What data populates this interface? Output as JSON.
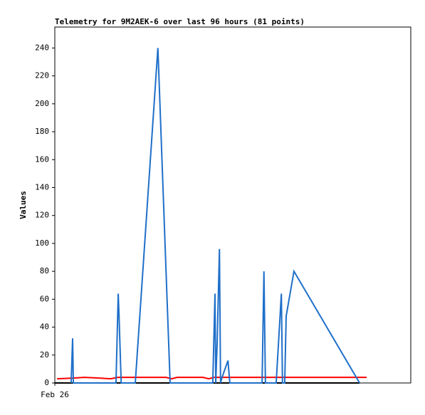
{
  "chart_data": {
    "type": "line",
    "title": "Telemetry for 9M2AEK-6 over last 96 hours (81 points)",
    "ylabel": "Values",
    "xlim": [
      0,
      96
    ],
    "xticks": [
      {
        "value": 0,
        "label": "Feb 26"
      }
    ],
    "ylim": [
      0,
      255
    ],
    "yticks": [
      0,
      20,
      40,
      60,
      80,
      100,
      120,
      140,
      160,
      180,
      200,
      220,
      240
    ],
    "series": [
      {
        "color": "#000000",
        "x": [
          0,
          82.2
        ],
        "values": [
          0,
          0
        ]
      },
      {
        "color": "#ff0000",
        "x": [
          0.6,
          5,
          8,
          12,
          15,
          17,
          20,
          30,
          31.5,
          33,
          40,
          41.5,
          43,
          84.1
        ],
        "values": [
          3,
          3.5,
          4,
          3.5,
          3,
          4,
          4,
          4,
          3,
          4,
          4,
          3,
          4,
          4
        ]
      },
      {
        "color": "#1f6fc9",
        "x": [
          4.4,
          4.8,
          5.0,
          16.5,
          17.1,
          17.3,
          17.9,
          21.7,
          27.8,
          31.1,
          42.6,
          43.2,
          43.4,
          43.8,
          44.4,
          44.7,
          45.1,
          46.7,
          47.2,
          55.9,
          56.4,
          56.8,
          59.7,
          61.1,
          61.4,
          62.0,
          62.4,
          64.5,
          82.2
        ],
        "values": [
          0,
          32,
          0,
          0,
          64,
          50,
          0,
          0,
          240,
          0,
          0,
          64,
          0,
          30,
          96,
          0,
          4,
          16,
          0,
          0,
          80,
          0,
          0,
          64,
          0,
          0,
          48,
          80,
          0
        ]
      }
    ]
  }
}
